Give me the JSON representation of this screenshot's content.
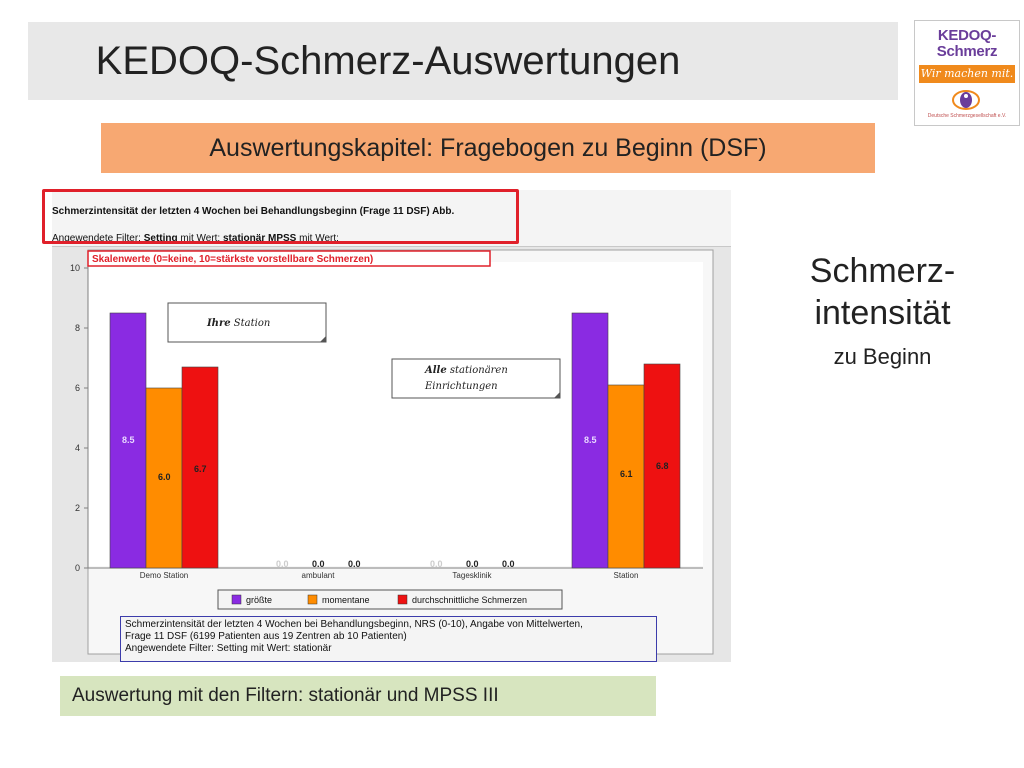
{
  "header": {
    "title": "KEDOQ-Schmerz-Auswertungen",
    "chapter": "Auswertungskapitel: Fragebogen zu Beginn (DSF)"
  },
  "logo": {
    "line1": "KEDOQ-",
    "line2": "Schmerz",
    "slogan": "Wir machen mit.",
    "small_text": "Deutsche Schmerzgesellschaft e.V."
  },
  "side": {
    "title_line1": "Schmerz-",
    "title_line2": "intensität",
    "subtitle": "zu Beginn"
  },
  "panel": {
    "header_line1": "Schmerzintensität der letzten 4 Wochen bei Behandlungsbeginn (Frage 11 DSF) Abb.",
    "header_line2_prefix": "Angewendete Filter: ",
    "header_line2_bold1": "Setting",
    "header_line2_mid": " mit Wert: ",
    "header_line2_bold2": "stationär MPSS",
    "header_line2_suffix": " mit Wert:",
    "footer_line1": "Schmerzintensität der letzten 4 Wochen bei Behandlungsbeginn, NRS (0-10), Angabe von Mittelwerten,",
    "footer_line2": "Frage 11 DSF (6199 Patienten aus 19 Zentren ab 10 Patienten)",
    "footer_line3": "Angewendete Filter:  Setting mit Wert: stationär"
  },
  "filter_note": "Auswertung mit  den Filtern: stationär und MPSS III",
  "chart_data": {
    "type": "bar",
    "title": "Skalenwerte (0=keine, 10=stärkste vorstellbare Schmerzen)",
    "categories": [
      "Demo Station",
      "ambulant",
      "Tagesklinik",
      "Station"
    ],
    "series": [
      {
        "name": "größte",
        "values": [
          8.5,
          0.0,
          0.0,
          8.5
        ],
        "color": "#8a2be2"
      },
      {
        "name": "momentane",
        "values": [
          6.0,
          0.0,
          0.0,
          6.1
        ],
        "color": "#ff8c00"
      },
      {
        "name": "durchschnittliche Schmerzen",
        "values": [
          6.7,
          0.0,
          0.0,
          6.8
        ],
        "color": "#ee1111"
      }
    ],
    "ylim": [
      0,
      10
    ],
    "yticks": [
      0,
      2,
      4,
      6,
      8,
      10
    ],
    "grid": false,
    "legend": "bottom",
    "annotations": [
      {
        "label_bold": "Ihre",
        "label_rest": " Station"
      },
      {
        "label_bold": "Alle",
        "label_rest": " stationären",
        "line2": "Einrichtungen"
      }
    ]
  }
}
